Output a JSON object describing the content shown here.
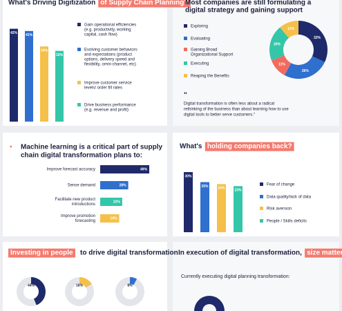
{
  "drivers": {
    "title": "What's Driving Digitization",
    "title_highlight": "of Supply Chain Planning?",
    "values": [
      42,
      41,
      34,
      32
    ],
    "value_labels": [
      "42%",
      "41%",
      "34%",
      "32%"
    ],
    "colors": [
      "#1f2a6b",
      "#2f6fce",
      "#f5c04a",
      "#34c6a8"
    ],
    "legend": [
      [
        "Gain operational efficiencies",
        "(e.g. productivity, working",
        "capital, cash flow)"
      ],
      [
        "Evolving customer behaviors",
        "and expectations (product",
        "options, delivery speed and",
        "flexibility, omni-channel, etc)"
      ],
      [
        "Improve customer service",
        "levels/ order fill rates"
      ],
      [
        "Drive business performance",
        "(e.g. revenue and profit)"
      ]
    ]
  },
  "strategy": {
    "title": [
      "Most companies are still formulating a",
      "digital strategy and gaining support"
    ],
    "legend": [
      [
        "Exploring"
      ],
      [
        "Evaluating"
      ],
      [
        "Gaining Broad",
        "Organizational Support"
      ],
      [
        "Executing"
      ],
      [
        "Reaping the Benefits"
      ]
    ],
    "values": [
      32,
      26,
      11,
      20,
      11
    ],
    "value_labels": [
      "32%",
      "26%",
      "11%",
      "20%",
      "11%"
    ],
    "colors": [
      "#1f2a6b",
      "#2f6fce",
      "#f06b5f",
      "#34c6a8",
      "#f5c04a"
    ],
    "quote_mark": "\"",
    "quote": [
      "Digital transformation is often less about a radical",
      "rethinking of the business than about learning how to use",
      "digital tools to better serve customers.\""
    ]
  },
  "ml": {
    "title": [
      "Machine learning is a critical part of supply",
      "chain digital transformation plans to:"
    ],
    "categories": [
      [
        "Improve forecast accuracy"
      ],
      [
        "Sense demand"
      ],
      [
        "Facilitate new product",
        "introductions"
      ],
      [
        "Improve promotion",
        "forecasting"
      ]
    ],
    "values": [
      49,
      28,
      22,
      19
    ],
    "value_labels": [
      "49%",
      "28%",
      "22%",
      "19%"
    ],
    "colors": [
      "#1f2a6b",
      "#2f6fce",
      "#34c6a8",
      "#f5c04a"
    ]
  },
  "barriers": {
    "title": "What's",
    "title_highlight": "holding companies back?",
    "values": [
      30,
      25,
      24,
      23
    ],
    "value_labels": [
      "30%",
      "25%",
      "24%",
      "23%"
    ],
    "colors": [
      "#1f2a6b",
      "#2f6fce",
      "#f5c04a",
      "#34c6a8"
    ],
    "legend": [
      [
        "Fear of change"
      ],
      [
        "Data quality/lack of data"
      ],
      [
        "Risk aversion"
      ],
      [
        "People / Skills deficits"
      ]
    ]
  },
  "people": {
    "title_highlight": "Investing in people",
    "title": "to drive digital transformation",
    "values": [
      44,
      16,
      8
    ],
    "value_labels": [
      "44%",
      "16%",
      "8%"
    ],
    "colors": [
      "#1f2a6b",
      "#f5c04a",
      "#2f6fce"
    ]
  },
  "size": {
    "title": "In execution of digital transformation,",
    "title_highlight": "size matters",
    "subtitle": "Currently executing digital planning transformation:"
  }
}
